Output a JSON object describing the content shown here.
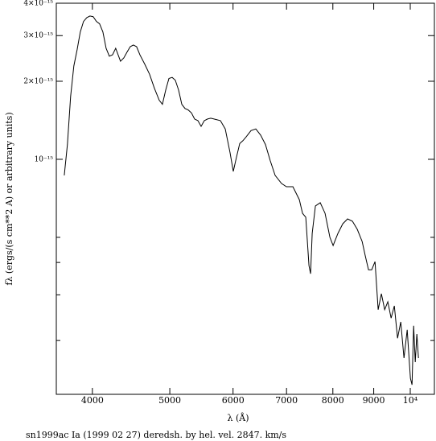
{
  "chart_data": {
    "type": "line",
    "xlabel": "λ (Å)",
    "ylabel": "fλ (ergs/(s cm**2 A) or arbitrary units)",
    "caption": "sn1999ac Ia (1999 02 27) deredsh. by hel. vel.  2847. km/s",
    "xscale": "log",
    "yscale": "log",
    "xlim": [
      3605,
      10720
    ],
    "ylim": [
      1.24e-16,
      4e-15
    ],
    "xticks": [
      4000,
      5000,
      6000,
      7000,
      8000,
      9000,
      {
        "value": 10000,
        "label": "10⁴"
      }
    ],
    "yticks": [
      {
        "value": 4e-15,
        "label": "4×10⁻¹⁵"
      },
      {
        "value": 3e-15,
        "label": "3×10⁻¹⁵"
      },
      {
        "value": 2e-15,
        "label": "2×10⁻¹⁵"
      },
      {
        "value": 1e-15,
        "label": "10⁻¹⁵"
      },
      {
        "value": 5e-16,
        "label": null
      },
      {
        "value": 4e-16,
        "label": null
      },
      {
        "value": 3e-16,
        "label": null
      },
      {
        "value": 2e-16,
        "label": null
      }
    ],
    "series": [
      {
        "color": "#000000",
        "x": [
          3689,
          3722,
          3757,
          3792,
          3828,
          3863,
          3899,
          3936,
          3972,
          4009,
          4047,
          4084,
          4123,
          4161,
          4200,
          4239,
          4278,
          4338,
          4379,
          4420,
          4461,
          4502,
          4544,
          4587,
          4651,
          4716,
          4783,
          4850,
          4895,
          4941,
          4987,
          5034,
          5080,
          5128,
          5176,
          5224,
          5272,
          5322,
          5371,
          5422,
          5472,
          5523,
          5575,
          5626,
          5679,
          5785,
          5866,
          5949,
          6004,
          6060,
          6116,
          6174,
          6231,
          6318,
          6407,
          6497,
          6588,
          6680,
          6774,
          6901,
          6998,
          7129,
          7263,
          7330,
          7399,
          7468,
          7503,
          7538,
          7608,
          7714,
          7822,
          7932,
          8006,
          8118,
          8232,
          8348,
          8464,
          8583,
          8704,
          8785,
          8866,
          8949,
          9033,
          9117,
          9202,
          9288,
          9374,
          9462,
          9550,
          9640,
          9729,
          9820,
          9912,
          10004,
          10050,
          10097,
          10144,
          10191,
          10239
        ],
        "values": [
          8.67e-16,
          1.14e-15,
          1.75e-15,
          2.29e-15,
          2.65e-15,
          3.1e-15,
          3.4e-15,
          3.52e-15,
          3.57e-15,
          3.55e-15,
          3.4e-15,
          3.33e-15,
          3.1e-15,
          2.68e-15,
          2.5e-15,
          2.53e-15,
          2.68e-15,
          2.39e-15,
          2.46e-15,
          2.59e-15,
          2.72e-15,
          2.76e-15,
          2.72e-15,
          2.53e-15,
          2.33e-15,
          2.13e-15,
          1.88e-15,
          1.69e-15,
          1.63e-15,
          1.85e-15,
          2.05e-15,
          2.07e-15,
          2.02e-15,
          1.85e-15,
          1.63e-15,
          1.57e-15,
          1.55e-15,
          1.51e-15,
          1.43e-15,
          1.41e-15,
          1.34e-15,
          1.41e-15,
          1.43e-15,
          1.44e-15,
          1.43e-15,
          1.41e-15,
          1.31e-15,
          1.06e-15,
          8.98e-16,
          1.02e-15,
          1.15e-15,
          1.18e-15,
          1.22e-15,
          1.29e-15,
          1.31e-15,
          1.24e-15,
          1.14e-15,
          9.86e-16,
          8.67e-16,
          8.07e-16,
          7.84e-16,
          7.84e-16,
          6.99e-16,
          6.19e-16,
          5.98e-16,
          3.89e-16,
          3.62e-16,
          5.18e-16,
          6.61e-16,
          6.8e-16,
          6.19e-16,
          5e-16,
          4.65e-16,
          5.18e-16,
          5.64e-16,
          5.89e-16,
          5.77e-16,
          5.37e-16,
          4.82e-16,
          4.24e-16,
          3.75e-16,
          3.75e-16,
          4.03e-16,
          2.63e-16,
          3.03e-16,
          2.63e-16,
          2.82e-16,
          2.44e-16,
          2.72e-16,
          2.04e-16,
          2.36e-16,
          1.71e-16,
          2.2e-16,
          1.43e-16,
          1.35e-16,
          2.28e-16,
          1.65e-16,
          2.12e-16,
          1.71e-16
        ]
      }
    ]
  }
}
